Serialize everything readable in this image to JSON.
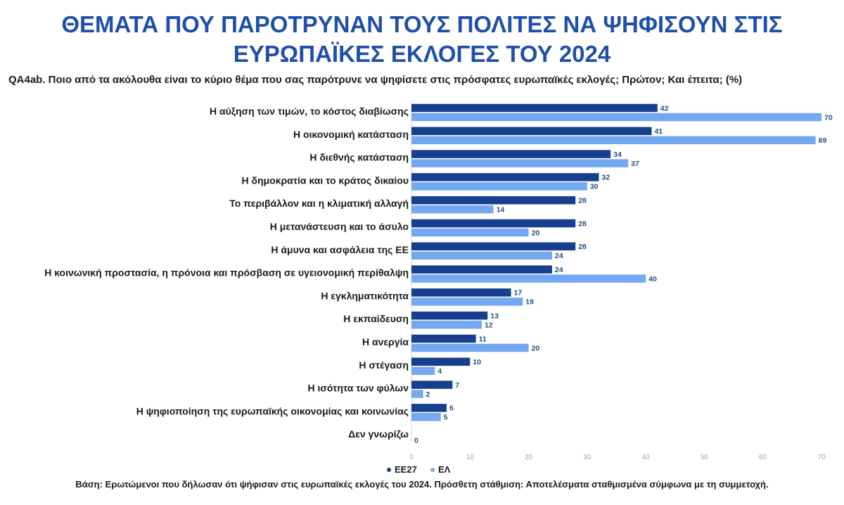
{
  "header": {
    "title_line1": "ΘΕΜΑΤΑ ΠΟΥ ΠΑΡΟΤΡΥΝΑΝ ΤΟΥΣ ΠΟΛΙΤΕΣ ΝΑ ΨΗΦΙΣΟΥΝ ΣΤΙΣ",
    "title_line2": "ΕΥΡΩΠΑΪΚΕΣ ΕΚΛΟΓΕΣ ΤΟΥ 2024",
    "question": "QA4ab. Ποιο από τα ακόλουθα είναι το κύριο θέμα που σας παρότρυνε να ψηφίσετε στις πρόσφατες ευρωπαϊκές εκλογές; Πρώτον; Και έπειτα; (%)"
  },
  "footer": {
    "note": "Βάση: Ερωτώμενοι που δήλωσαν ότι ψήφισαν στις ευρωπαϊκές εκλογές του 2024. Πρόσθετη στάθμιση: Αποτελέσματα σταθμισμένα σύμφωνα με τη συμμετοχή."
  },
  "chart_data": {
    "type": "bar",
    "orientation": "horizontal",
    "categories": [
      "Η αύξηση των τιμών, το κόστος διαβίωσης",
      "Η οικονομική κατάσταση",
      "Η διεθνής κατάσταση",
      "Η δημοκρατία και το κράτος δικαίου",
      "Το περιβάλλον και η κλιματική αλλαγή",
      "Η μετανάστευση και το άσυλο",
      "Η άμυνα και ασφάλεια της ΕΕ",
      "Η κοινωνική προστασία, η πρόνοια και πρόσβαση σε υγειονομική περίθαλψη",
      "Η εγκληματικότητα",
      "Η εκπαίδευση",
      "Η ανεργία",
      "Η στέγαση",
      "Η ισότητα των φύλων",
      "Η ψηφιοποίηση της ευρωπαϊκής οικονομίας και κοινωνίας",
      "Δεν γνωρίζω"
    ],
    "series": [
      {
        "name": "ΕΕ27",
        "color": "#173f8f",
        "values": [
          42,
          41,
          34,
          32,
          28,
          28,
          28,
          24,
          17,
          13,
          11,
          10,
          7,
          6,
          null
        ],
        "labels": [
          "42",
          "41",
          "34",
          "32",
          "28",
          "28",
          "28",
          "24",
          "17",
          "13",
          "11",
          "10",
          "7",
          "6",
          ""
        ]
      },
      {
        "name": "ΕΛ",
        "color": "#74a9f2",
        "values": [
          70,
          69,
          37,
          30,
          14,
          20,
          24,
          40,
          19,
          12,
          20,
          4,
          2,
          5,
          0
        ],
        "labels": [
          "70",
          "69",
          "37",
          "30",
          "14",
          "20",
          "24",
          "40",
          "19",
          "12",
          "20",
          "4",
          "2",
          "5",
          "0"
        ]
      }
    ],
    "xlim": [
      0,
      70
    ],
    "xticks": [
      0,
      10,
      20,
      30,
      40,
      50,
      60,
      70
    ],
    "xtick_labels": [
      "0",
      "10",
      "20",
      "30",
      "40",
      "50",
      "60",
      "70"
    ],
    "legend": {
      "position": "bottom-center",
      "items": [
        "ΕΕ27",
        "ΕΛ"
      ]
    },
    "label_color": "#1f4f84",
    "tick_color": "#9aa3ad"
  }
}
